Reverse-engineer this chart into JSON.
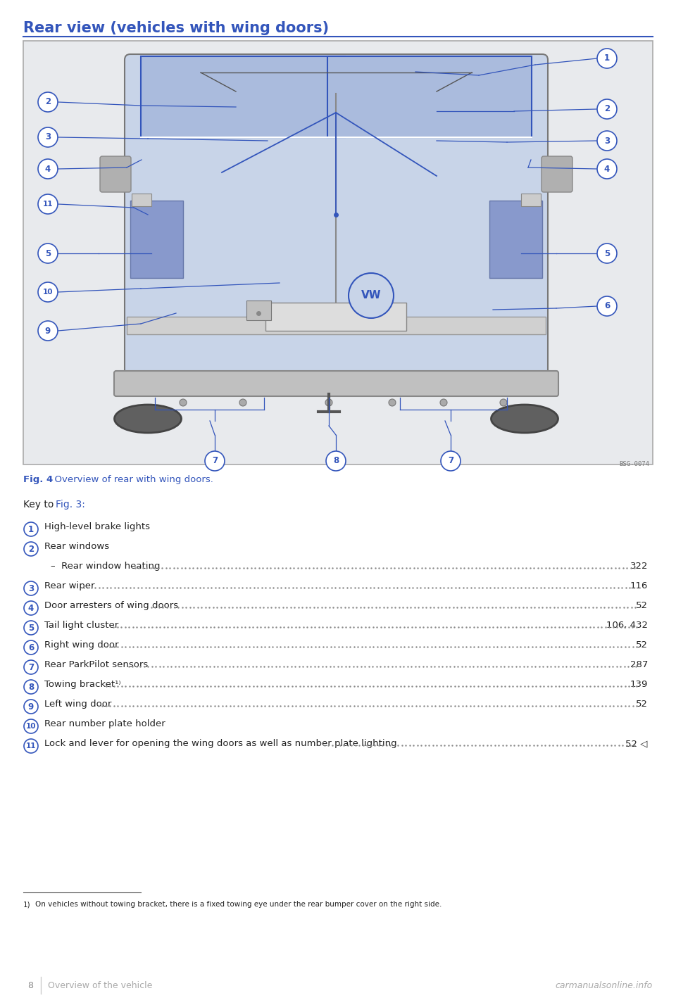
{
  "title": "Rear view (vehicles with wing doors)",
  "title_color": "#3355bb",
  "title_fontsize": 15,
  "fig_caption_bold": "Fig. 4",
  "fig_caption_rest": "  Overview of rear with wing doors.",
  "fig_caption_color": "#3355bb",
  "key_intro": "Key to ",
  "key_fig_ref": "Fig. 3:",
  "key_fig_ref_color": "#3355bb",
  "bg_color": "#ffffff",
  "diagram_bg": "#e8e8e8",
  "van_body_color": "#c8d4e8",
  "van_outline_color": "#888888",
  "circle_color": "#3355bb",
  "text_color": "#222222",
  "dot_color": "#888888",
  "footnote": "On vehicles without towing bracket, there is a fixed towing eye under the rear bumper cover on the right side.",
  "footer_page": "8",
  "footer_text": "Overview of the vehicle",
  "footer_brand": "carmanualsonline.info",
  "items": [
    {
      "num": "1",
      "text": "High-level brake lights",
      "page": "",
      "dots": false,
      "sub": false
    },
    {
      "num": "2",
      "text": "Rear windows",
      "page": "",
      "dots": false,
      "sub": false
    },
    {
      "num": "",
      "text": "–  Rear window heating",
      "page": "322",
      "dots": true,
      "sub": true
    },
    {
      "num": "3",
      "text": "Rear wiper",
      "page": "116",
      "dots": true,
      "sub": false
    },
    {
      "num": "4",
      "text": "Door arresters of wing doors",
      "page": "52",
      "dots": true,
      "sub": false
    },
    {
      "num": "5",
      "text": "Tail light cluster",
      "page": "106, 432",
      "dots": true,
      "sub": false
    },
    {
      "num": "6",
      "text": "Right wing door",
      "page": "52",
      "dots": true,
      "sub": false
    },
    {
      "num": "7",
      "text": "Rear ParkPilot sensors",
      "page": "287",
      "dots": true,
      "sub": false
    },
    {
      "num": "8",
      "text": "Towing bracket¹⁾",
      "page": "139",
      "dots": true,
      "sub": false
    },
    {
      "num": "9",
      "text": "Left wing door",
      "page": "52",
      "dots": true,
      "sub": false
    },
    {
      "num": "10",
      "text": "Rear number plate holder",
      "page": "",
      "dots": false,
      "sub": false
    },
    {
      "num": "11",
      "text": "Lock and lever for opening the wing doors as well as number plate lighting",
      "page": "52 ◁",
      "dots": true,
      "sub": false
    }
  ]
}
